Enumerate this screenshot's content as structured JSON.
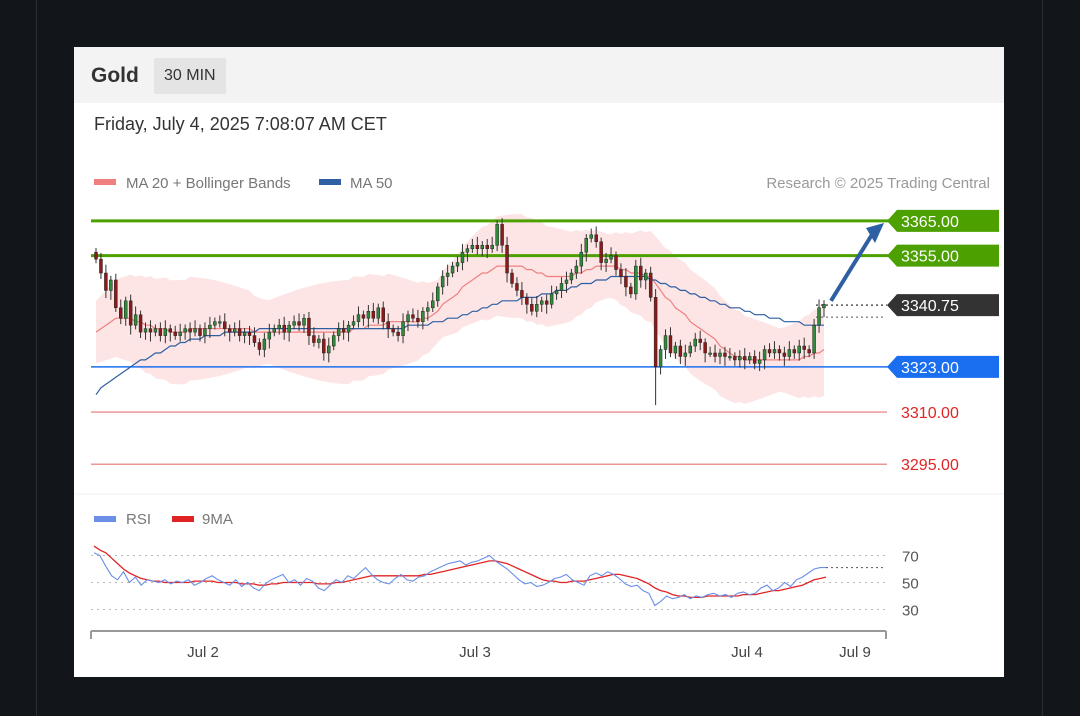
{
  "header": {
    "asset": "Gold",
    "timeframe": "30 MIN"
  },
  "timestamp": "Friday, July 4, 2025 7:08:07 AM CET",
  "legend": {
    "ma20": "MA 20 + Bollinger Bands",
    "ma50": "MA 50"
  },
  "attribution": "Research © 2025 Trading Central",
  "rsi_legend": {
    "rsi": "RSI",
    "ma9": "9MA"
  },
  "colors": {
    "resistance": "#4ca000",
    "support": "#1a6ff0",
    "current": "#333333",
    "target_lines": "#e67474",
    "target_text": "#e02424",
    "ma20": "#f08080",
    "ma50": "#2e5fa3",
    "band_fill": "#fde0e0",
    "candle": "#2e8b3a",
    "rsi": "#6b8ee6",
    "ma9": "#e02424",
    "arrow": "#2e5fa3"
  },
  "chart_data": {
    "type": "candlestick",
    "x_tick_labels": [
      "Jul 2",
      "Jul 3",
      "Jul 4",
      "Jul 9"
    ],
    "y_range": [
      3287,
      3369
    ],
    "levels": [
      {
        "label": "3365.00",
        "value": 3365,
        "kind": "resistance"
      },
      {
        "label": "3355.00",
        "value": 3355,
        "kind": "resistance"
      },
      {
        "label": "3340.75",
        "value": 3340.75,
        "kind": "current"
      },
      {
        "label": "3323.00",
        "value": 3323,
        "kind": "support"
      },
      {
        "label": "3310.00",
        "value": 3310,
        "kind": "target"
      },
      {
        "label": "3295.00",
        "value": 3295,
        "kind": "target"
      }
    ],
    "close": [
      3354,
      3350,
      3345,
      3348,
      3340,
      3337,
      3342,
      3335,
      3338,
      3333,
      3334,
      3333,
      3334,
      3332,
      3334,
      3333,
      3332,
      3333,
      3334,
      3333,
      3334,
      3332,
      3334,
      3335,
      3336,
      3336,
      3334,
      3333,
      3334,
      3332,
      3333,
      3332,
      3330,
      3328,
      3331,
      3333,
      3334,
      3335,
      3333,
      3335,
      3336,
      3335,
      3337,
      3332,
      3330,
      3331,
      3327,
      3329,
      3332,
      3334,
      3333,
      3335,
      3336,
      3338,
      3337,
      3339,
      3337,
      3340,
      3336,
      3334,
      3333,
      3332,
      3336,
      3338,
      3337,
      3336,
      3339,
      3340,
      3342,
      3346,
      3349,
      3350,
      3352,
      3353,
      3356,
      3357,
      3358,
      3357,
      3358,
      3357,
      3358,
      3364,
      3358,
      3350,
      3347,
      3345,
      3343,
      3341,
      3339,
      3341,
      3342,
      3341,
      3344,
      3345,
      3347,
      3348,
      3350,
      3352,
      3356,
      3360,
      3361,
      3359,
      3353,
      3354,
      3355,
      3351,
      3349,
      3346,
      3344,
      3352,
      3348,
      3350,
      3343,
      3323,
      3328,
      3332,
      3327,
      3329,
      3326,
      3327,
      3329,
      3331,
      3330,
      3327,
      3327,
      3326,
      3327,
      3326,
      3326,
      3325,
      3326,
      3325,
      3326,
      3324,
      3325,
      3328,
      3327,
      3328,
      3327,
      3326,
      3328,
      3327,
      3329,
      3328,
      3327,
      3335,
      3340,
      3341
    ],
    "ma20": [
      3333,
      3334,
      3335,
      3336,
      3337,
      3337,
      3337,
      3337,
      3336,
      3336,
      3335,
      3335,
      3334,
      3334,
      3334,
      3333,
      3333,
      3333,
      3333,
      3334,
      3334,
      3334,
      3334,
      3334,
      3334,
      3334,
      3334,
      3334,
      3334,
      3334,
      3334,
      3334,
      3333,
      3333,
      3333,
      3333,
      3333,
      3333,
      3333,
      3333,
      3333,
      3333,
      3333,
      3333,
      3333,
      3333,
      3333,
      3333,
      3333,
      3333,
      3333,
      3333,
      3334,
      3334,
      3334,
      3335,
      3335,
      3335,
      3335,
      3336,
      3336,
      3336,
      3336,
      3336,
      3336,
      3336,
      3337,
      3337,
      3338,
      3339,
      3341,
      3342,
      3343,
      3344,
      3346,
      3347,
      3348,
      3349,
      3350,
      3350,
      3351,
      3352,
      3352,
      3352,
      3352,
      3352,
      3352,
      3351,
      3351,
      3350,
      3350,
      3349,
      3349,
      3349,
      3349,
      3349,
      3349,
      3350,
      3350,
      3351,
      3351,
      3352,
      3352,
      3352,
      3352,
      3352,
      3351,
      3351,
      3350,
      3350,
      3350,
      3349,
      3349,
      3347,
      3345,
      3343,
      3342,
      3340,
      3339,
      3338,
      3336,
      3335,
      3334,
      3333,
      3332,
      3331,
      3329,
      3328,
      3327,
      3326,
      3326,
      3325,
      3325,
      3325,
      3325,
      3325,
      3325,
      3325,
      3325,
      3325,
      3325,
      3325,
      3325,
      3326,
      3326,
      3327,
      3327,
      3328
    ],
    "ma50": [
      3315,
      3317,
      3318,
      3319,
      3320,
      3321,
      3322,
      3323,
      3324,
      3325,
      3325,
      3326,
      3327,
      3327,
      3328,
      3329,
      3329,
      3330,
      3330,
      3331,
      3331,
      3331,
      3332,
      3332,
      3332,
      3332,
      3333,
      3333,
      3333,
      3333,
      3333,
      3333,
      3333,
      3334,
      3334,
      3334,
      3334,
      3334,
      3334,
      3334,
      3334,
      3334,
      3334,
      3334,
      3334,
      3334,
      3334,
      3334,
      3334,
      3334,
      3334,
      3334,
      3334,
      3334,
      3334,
      3334,
      3334,
      3334,
      3334,
      3334,
      3334,
      3334,
      3334,
      3335,
      3335,
      3335,
      3335,
      3335,
      3336,
      3336,
      3336,
      3337,
      3337,
      3337,
      3338,
      3338,
      3339,
      3339,
      3340,
      3340,
      3341,
      3341,
      3342,
      3342,
      3342,
      3342,
      3343,
      3343,
      3343,
      3343,
      3344,
      3344,
      3344,
      3345,
      3345,
      3345,
      3346,
      3346,
      3347,
      3347,
      3347,
      3348,
      3348,
      3348,
      3349,
      3349,
      3349,
      3349,
      3349,
      3349,
      3349,
      3349,
      3348,
      3348,
      3347,
      3347,
      3346,
      3346,
      3345,
      3345,
      3344,
      3344,
      3343,
      3343,
      3342,
      3342,
      3341,
      3341,
      3340,
      3340,
      3340,
      3339,
      3339,
      3338,
      3338,
      3338,
      3337,
      3337,
      3337,
      3336,
      3336,
      3336,
      3336,
      3335,
      3335,
      3335,
      3335,
      3335
    ],
    "rsi": {
      "y_ticks": [
        70,
        50,
        30
      ],
      "y_range": [
        20,
        80
      ],
      "rsi": [
        72,
        70,
        62,
        55,
        52,
        58,
        50,
        54,
        48,
        52,
        51,
        50,
        52,
        49,
        51,
        50,
        52,
        48,
        50,
        53,
        55,
        52,
        50,
        48,
        52,
        47,
        50,
        46,
        44,
        49,
        52,
        54,
        56,
        50,
        52,
        48,
        53,
        51,
        46,
        44,
        48,
        52,
        50,
        55,
        53,
        57,
        61,
        56,
        52,
        50,
        49,
        53,
        56,
        52,
        51,
        54,
        55,
        58,
        60,
        62,
        64,
        65,
        66,
        63,
        65,
        66,
        68,
        70,
        66,
        63,
        60,
        56,
        52,
        49,
        50,
        47,
        48,
        50,
        53,
        54,
        56,
        52,
        50,
        48,
        55,
        57,
        55,
        58,
        56,
        53,
        49,
        47,
        48,
        44,
        42,
        33,
        36,
        40,
        38,
        39,
        41,
        38,
        40,
        39,
        41,
        42,
        40,
        41,
        39,
        42,
        43,
        41,
        42,
        46,
        48,
        44,
        46,
        50,
        47,
        52,
        54,
        57,
        60,
        61,
        61
      ],
      "ma9": [
        77,
        74,
        72,
        68,
        64,
        60,
        57,
        55,
        53,
        52,
        51,
        51,
        50,
        50,
        50,
        50,
        50,
        51,
        51,
        51,
        51,
        50,
        50,
        50,
        50,
        49,
        49,
        49,
        48,
        48,
        49,
        49,
        50,
        50,
        50,
        50,
        50,
        50,
        49,
        49,
        49,
        50,
        50,
        51,
        52,
        53,
        54,
        55,
        55,
        55,
        55,
        55,
        55,
        55,
        55,
        55,
        56,
        56,
        57,
        58,
        59,
        60,
        61,
        62,
        63,
        64,
        65,
        66,
        66,
        65,
        64,
        62,
        60,
        58,
        56,
        54,
        52,
        51,
        51,
        50,
        50,
        51,
        51,
        51,
        52,
        53,
        54,
        55,
        56,
        56,
        55,
        54,
        53,
        51,
        49,
        46,
        44,
        43,
        41,
        40,
        40,
        39,
        39,
        39,
        40,
        40,
        40,
        40,
        40,
        40,
        41,
        41,
        41,
        42,
        43,
        44,
        44,
        45,
        46,
        47,
        48,
        50,
        52,
        53,
        54
      ]
    }
  }
}
